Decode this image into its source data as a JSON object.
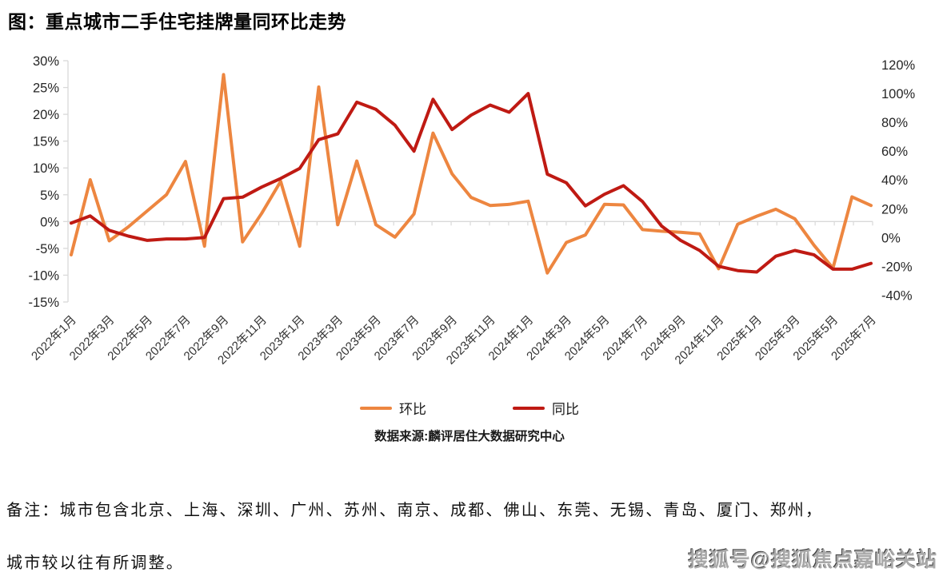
{
  "title": "图：重点城市二手住宅挂牌量同环比走势",
  "source": "数据来源:麟评居住大数据研究中心",
  "notes": {
    "line1": "备注：城市包含北京、上海、深圳、广州、苏州、南京、成都、佛山、东莞、无锡、青岛、厦门、郑州，",
    "line2": "城市较以往有所调整。"
  },
  "watermark": "搜狐号@搜狐焦点嘉峪关站",
  "chart_data": {
    "type": "line",
    "title": "重点城市二手住宅挂牌量同环比走势",
    "x": [
      "2022年1月",
      "2022年2月",
      "2022年3月",
      "2022年4月",
      "2022年5月",
      "2022年6月",
      "2022年7月",
      "2022年8月",
      "2022年9月",
      "2022年10月",
      "2022年11月",
      "2022年12月",
      "2023年1月",
      "2023年2月",
      "2023年3月",
      "2023年4月",
      "2023年5月",
      "2023年6月",
      "2023年7月",
      "2023年8月",
      "2023年9月",
      "2023年10月",
      "2023年11月",
      "2023年12月",
      "2024年1月",
      "2024年2月",
      "2024年3月",
      "2024年4月",
      "2024年5月",
      "2024年6月",
      "2024年7月",
      "2024年8月",
      "2024年9月",
      "2024年10月",
      "2024年11月",
      "2024年12月",
      "2025年1月",
      "2025年2月",
      "2025年3月",
      "2025年4月",
      "2025年5月",
      "2025年6月",
      "2025年7月"
    ],
    "x_label_every": 2,
    "x_shown_labels": [
      "2022年1月",
      "2022年3月",
      "2022年5月",
      "2022年7月",
      "2022年9月",
      "2022年11月",
      "2023年1月",
      "2023年3月",
      "2023年5月",
      "2023年7月",
      "2023年9月",
      "2023年11月",
      "2024年1月",
      "2024年3月",
      "2024年5月",
      "2024年7月",
      "2024年9月",
      "2024年11月",
      "2025年1月",
      "2025年3月",
      "2025年5月",
      "2025年7月"
    ],
    "series": [
      {
        "name": "环比",
        "axis": "left",
        "color": "#ED8640",
        "values": [
          -6.2,
          7.8,
          -3.6,
          -1.0,
          2.0,
          5.0,
          11.2,
          -4.6,
          27.4,
          -3.8,
          1.5,
          7.5,
          -4.6,
          25.1,
          -0.6,
          11.3,
          -0.6,
          -2.9,
          1.4,
          16.5,
          8.9,
          4.5,
          3.0,
          3.2,
          3.8,
          -9.6,
          -3.9,
          -2.5,
          3.2,
          3.1,
          -1.5,
          -1.8,
          -2.0,
          -2.3,
          -8.8,
          -0.5,
          1.0,
          2.3,
          0.5,
          -4.4,
          -8.7,
          4.6,
          3.0
        ]
      },
      {
        "name": "同比",
        "axis": "right",
        "color": "#BF1A13",
        "values": [
          10,
          15,
          5,
          1,
          -2,
          -1,
          -1,
          0,
          27,
          28,
          35,
          41,
          48,
          68,
          72,
          94,
          89,
          78,
          60,
          96,
          75,
          85,
          92,
          87,
          100,
          44,
          38,
          22,
          30,
          36,
          25,
          8,
          -2,
          -9,
          -20,
          -23,
          -24,
          -13,
          -9,
          -12,
          -22,
          -22,
          -18
        ]
      }
    ],
    "left_axis": {
      "min": -15,
      "max": 30,
      "tick_labels": [
        "30%",
        "25%",
        "20%",
        "15%",
        "10%",
        "5%",
        "0%",
        "-5%",
        "-10%",
        "-15%"
      ]
    },
    "right_axis": {
      "min": -40,
      "max": 120,
      "tick_labels": [
        "120%",
        "100%",
        "80%",
        "60%",
        "40%",
        "20%",
        "0%",
        "-20%",
        "-40%"
      ]
    },
    "grid": "zero-line-only",
    "legend_position": "bottom",
    "axis_color": "#D9D9D9",
    "tick_text_color": "#262626"
  }
}
